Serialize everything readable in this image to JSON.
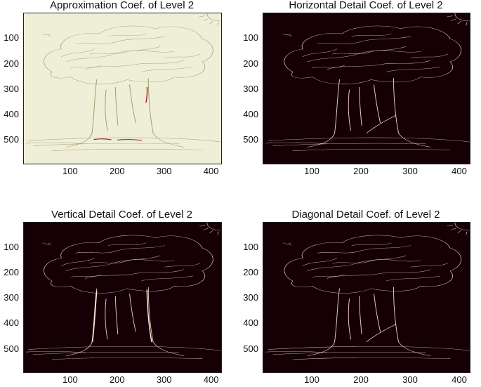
{
  "chart_data": [
    {
      "type": "heatmap",
      "title": "Approximation Coef. of Level 2",
      "xlim": [
        0,
        420
      ],
      "ylim": [
        0,
        590
      ],
      "xticks": [
        100,
        200,
        300,
        400
      ],
      "yticks": [
        100,
        200,
        300,
        400,
        500
      ],
      "colors": {
        "background": "#efefd8",
        "lines": "#a59a70",
        "accent": "#a01c1c"
      }
    },
    {
      "type": "heatmap",
      "title": "Horizontal Detail Coef. of Level 2",
      "xlim": [
        0,
        420
      ],
      "ylim": [
        0,
        590
      ],
      "xticks": [
        100,
        200,
        300,
        400
      ],
      "yticks": [
        100,
        200,
        300,
        400,
        500
      ],
      "colors": {
        "background": "#140005",
        "lines": "#e8c9bf",
        "accent": "#ffe6d6"
      }
    },
    {
      "type": "heatmap",
      "title": "Vertical Detail Coef. of Level 2",
      "xlim": [
        0,
        420
      ],
      "ylim": [
        0,
        590
      ],
      "xticks": [
        100,
        200,
        300,
        400
      ],
      "yticks": [
        100,
        200,
        300,
        400,
        500
      ],
      "colors": {
        "background": "#140005",
        "lines": "#e8c9bf",
        "accent": "#ffe6d6"
      }
    },
    {
      "type": "heatmap",
      "title": "Diagonal Detail Coef. of Level 2",
      "xlim": [
        0,
        420
      ],
      "ylim": [
        0,
        590
      ],
      "xticks": [
        100,
        200,
        300,
        400
      ],
      "yticks": [
        100,
        200,
        300,
        400,
        500
      ],
      "colors": {
        "background": "#140005",
        "lines": "#e8c9bf",
        "accent": "#ffe6d6"
      }
    }
  ]
}
